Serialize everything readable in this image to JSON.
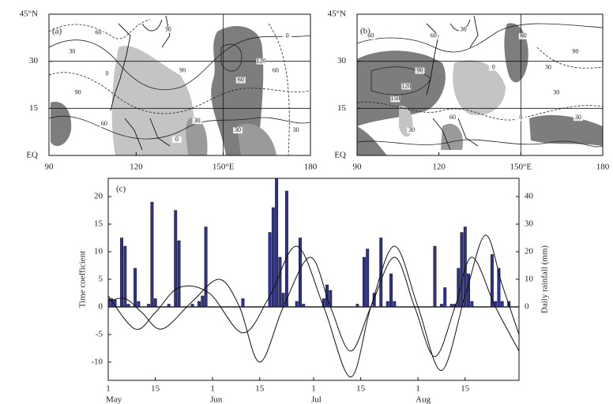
{
  "maps": [
    {
      "label": "(a)",
      "xlim": [
        90,
        180
      ],
      "ylim": [
        0,
        45
      ],
      "xticks": [
        90,
        120,
        {
          "value": 150,
          "label": "150°E"
        },
        180
      ],
      "yticks": [
        {
          "value": 0,
          "label": "EQ"
        },
        15,
        30,
        {
          "value": 45,
          "label": "45°N"
        }
      ],
      "contour_labels": [
        "60",
        "30",
        "0",
        "30",
        "90",
        "120",
        "60",
        "30",
        "30",
        "0",
        "60",
        "30",
        "60",
        "0",
        "90"
      ]
    },
    {
      "label": "(b)",
      "xlim": [
        90,
        180
      ],
      "ylim": [
        0,
        45
      ],
      "xticks": [
        90,
        120,
        {
          "value": 150,
          "label": "150°E"
        },
        180
      ],
      "yticks": [
        {
          "value": 0,
          "label": "EQ"
        },
        15,
        30,
        {
          "value": 45,
          "label": "45°N"
        }
      ],
      "contour_labels": [
        "60",
        "120",
        "30",
        "90",
        "150",
        "60",
        "0",
        "30",
        "0",
        "30",
        "60",
        "30",
        "30",
        "90",
        "60"
      ]
    }
  ],
  "chart_data": {
    "type": "bar_line",
    "label": "(c)",
    "ylabel": "Time coefficient",
    "y2label": "Daily rainfall (mm)",
    "xlim": [
      0,
      122
    ],
    "xticks": [
      {
        "value": 0,
        "label": "1"
      },
      {
        "value": 14,
        "label": "15"
      },
      {
        "value": 31,
        "label": "1"
      },
      {
        "value": 45,
        "label": "15"
      },
      {
        "value": 61,
        "label": "1"
      },
      {
        "value": 75,
        "label": "15"
      },
      {
        "value": 92,
        "label": "1"
      },
      {
        "value": 106,
        "label": "15"
      }
    ],
    "months": [
      {
        "value": 0,
        "label": "May"
      },
      {
        "value": 31,
        "label": "Jun"
      },
      {
        "value": 61,
        "label": "Jul"
      },
      {
        "value": 92,
        "label": "Aug"
      }
    ],
    "ylim": [
      -13.3,
      23.3
    ],
    "yticks": [
      -10,
      -5,
      0,
      5,
      10,
      15,
      20
    ],
    "y2lim": [
      -26.6,
      46.6
    ],
    "y2ticks": [
      0,
      10,
      20,
      30,
      40
    ],
    "series": [
      {
        "type": "bar",
        "axis": "y2",
        "color": "#2e3192",
        "x": [
          0,
          1,
          2,
          4,
          5,
          6,
          8,
          9,
          12,
          13,
          14,
          18,
          20,
          21,
          25,
          27,
          28,
          29,
          40,
          48,
          49,
          50,
          51,
          52,
          53,
          56,
          57,
          58,
          64,
          65,
          66,
          74,
          76,
          77,
          79,
          81,
          83,
          84,
          85,
          97,
          99,
          100,
          102,
          103,
          104,
          105,
          106,
          107,
          108,
          114,
          115,
          116,
          117,
          119
        ],
        "values": [
          3,
          3,
          2.5,
          25,
          22,
          1,
          14,
          2,
          1,
          38,
          3,
          1,
          35,
          24,
          1,
          2,
          4,
          29,
          3,
          27,
          36,
          47,
          18,
          5,
          42,
          2,
          25,
          1,
          3,
          8,
          6,
          1,
          18,
          21,
          5,
          25,
          2,
          12,
          2,
          22,
          1,
          7,
          1,
          1,
          14,
          27,
          29,
          12,
          2,
          19,
          2,
          14,
          2,
          2
        ]
      },
      {
        "type": "line",
        "color": "#111111",
        "x": [
          0,
          8,
          14,
          21,
          30,
          40,
          48,
          56,
          64,
          72,
          78,
          85,
          92,
          99,
          106,
          112,
          117,
          122
        ],
        "values": [
          2,
          -4,
          -1,
          3.5,
          2.5,
          -4.7,
          2,
          11,
          0,
          -12.7,
          0,
          11,
          0,
          -11.5,
          2,
          13,
          4,
          -5
        ]
      },
      {
        "type": "line",
        "color": "#111111",
        "x": [
          0,
          5,
          10,
          16,
          25,
          33,
          39,
          45,
          52,
          60,
          66,
          72,
          78,
          85,
          91,
          97,
          103,
          108,
          115,
          122
        ],
        "values": [
          1,
          1.5,
          -1,
          -4,
          1,
          5,
          0,
          -10,
          0,
          9,
          0,
          -8,
          0,
          9,
          0,
          -9,
          0,
          9,
          0,
          -8
        ]
      }
    ]
  }
}
